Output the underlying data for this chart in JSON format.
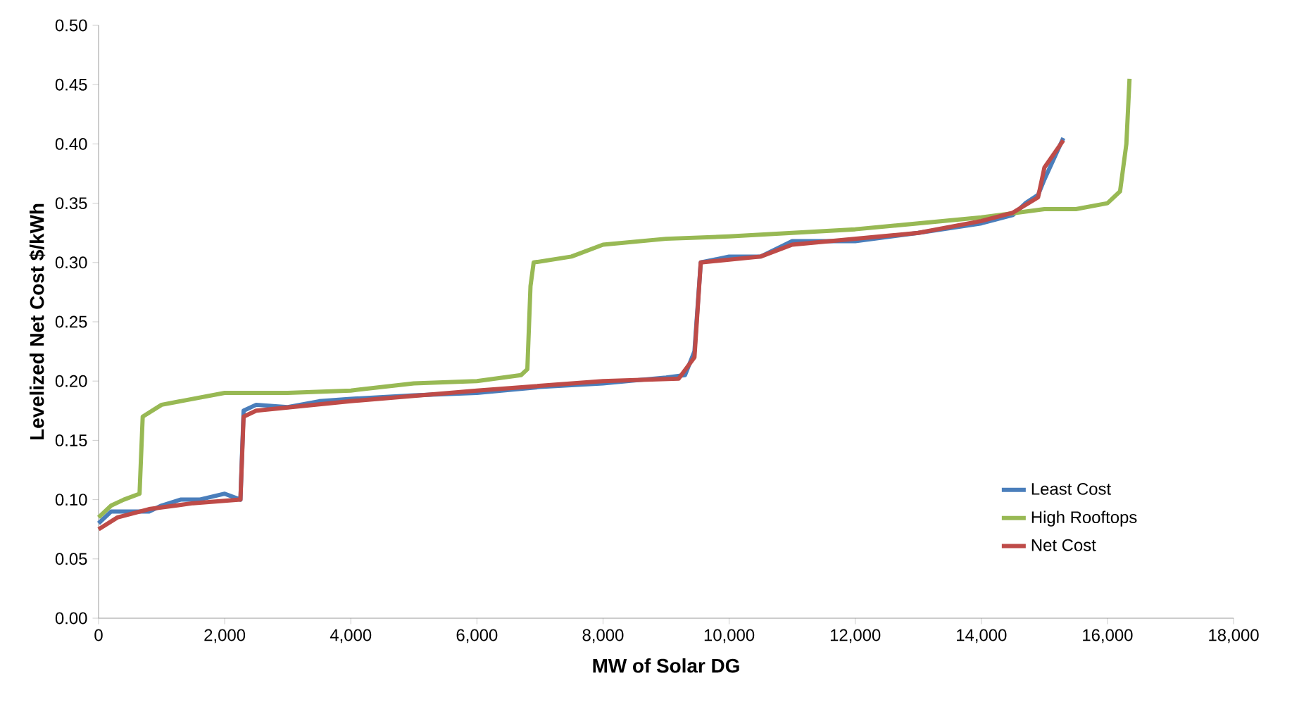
{
  "chart_data": {
    "type": "line",
    "xlabel": "MW of Solar DG",
    "ylabel": "Levelized Net Cost $/kWh",
    "xlim": [
      0,
      18000
    ],
    "ylim": [
      0,
      0.5
    ],
    "xticks": [
      0,
      {
        "value": 2000,
        "label": "2,000"
      },
      {
        "value": 4000,
        "label": "4,000"
      },
      {
        "value": 6000,
        "label": "6,000"
      },
      {
        "value": 8000,
        "label": "8,000"
      },
      {
        "value": 10000,
        "label": "10,000"
      },
      {
        "value": 12000,
        "label": "12,000"
      },
      {
        "value": 14000,
        "label": "14,000"
      },
      {
        "value": 16000,
        "label": "16,000"
      },
      {
        "value": 18000,
        "label": "18,000"
      }
    ],
    "yticks": [
      {
        "value": 0,
        "label": "0.00"
      },
      {
        "value": 0.05,
        "label": "0.05"
      },
      {
        "value": 0.1,
        "label": "0.10"
      },
      {
        "value": 0.15,
        "label": "0.15"
      },
      {
        "value": 0.2,
        "label": "0.20"
      },
      {
        "value": 0.25,
        "label": "0.25"
      },
      {
        "value": 0.3,
        "label": "0.30"
      },
      {
        "value": 0.35,
        "label": "0.35"
      },
      {
        "value": 0.4,
        "label": "0.40"
      },
      {
        "value": 0.45,
        "label": "0.45"
      },
      {
        "value": 0.5,
        "label": "0.50"
      }
    ],
    "legend": "bottom right",
    "grid": false,
    "marker": "none",
    "line_style": "solid",
    "series": [
      {
        "name": "Least Cost",
        "color": "#4a7ebb",
        "x": [
          0,
          200,
          500,
          800,
          1000,
          1300,
          1600,
          2000,
          2250,
          2300,
          2500,
          3000,
          3500,
          4000,
          5000,
          6000,
          7000,
          8000,
          9000,
          9300,
          9450,
          9550,
          10000,
          10500,
          11000,
          12000,
          13000,
          14000,
          14500,
          14700,
          14900,
          15000,
          15300
        ],
        "values": [
          0.08,
          0.09,
          0.09,
          0.09,
          0.095,
          0.1,
          0.1,
          0.105,
          0.1,
          0.175,
          0.18,
          0.178,
          0.183,
          0.185,
          0.188,
          0.19,
          0.195,
          0.198,
          0.203,
          0.205,
          0.225,
          0.3,
          0.305,
          0.305,
          0.318,
          0.318,
          0.325,
          0.333,
          0.34,
          0.35,
          0.357,
          0.37,
          0.405
        ]
      },
      {
        "name": "High Rooftops",
        "color": "#98b954",
        "x": [
          0,
          200,
          400,
          650,
          700,
          1000,
          1500,
          2000,
          3000,
          4000,
          5000,
          6000,
          6700,
          6800,
          6850,
          6900,
          7500,
          8000,
          9000,
          10000,
          11000,
          12000,
          13000,
          14000,
          15000,
          15500,
          16000,
          16200,
          16300,
          16350
        ],
        "values": [
          0.085,
          0.095,
          0.1,
          0.105,
          0.17,
          0.18,
          0.185,
          0.19,
          0.19,
          0.192,
          0.198,
          0.2,
          0.205,
          0.21,
          0.28,
          0.3,
          0.305,
          0.315,
          0.32,
          0.322,
          0.325,
          0.328,
          0.333,
          0.338,
          0.345,
          0.345,
          0.35,
          0.36,
          0.4,
          0.455
        ]
      },
      {
        "name": "Net Cost",
        "color": "#be4b48",
        "x": [
          0,
          300,
          800,
          1500,
          2250,
          2300,
          2500,
          4000,
          6000,
          8000,
          9200,
          9450,
          9550,
          10500,
          11000,
          12000,
          13000,
          14000,
          14500,
          14900,
          15000,
          15300
        ],
        "values": [
          0.075,
          0.085,
          0.092,
          0.097,
          0.1,
          0.17,
          0.175,
          0.183,
          0.192,
          0.2,
          0.202,
          0.22,
          0.3,
          0.305,
          0.315,
          0.32,
          0.325,
          0.335,
          0.342,
          0.355,
          0.38,
          0.403
        ]
      }
    ]
  }
}
